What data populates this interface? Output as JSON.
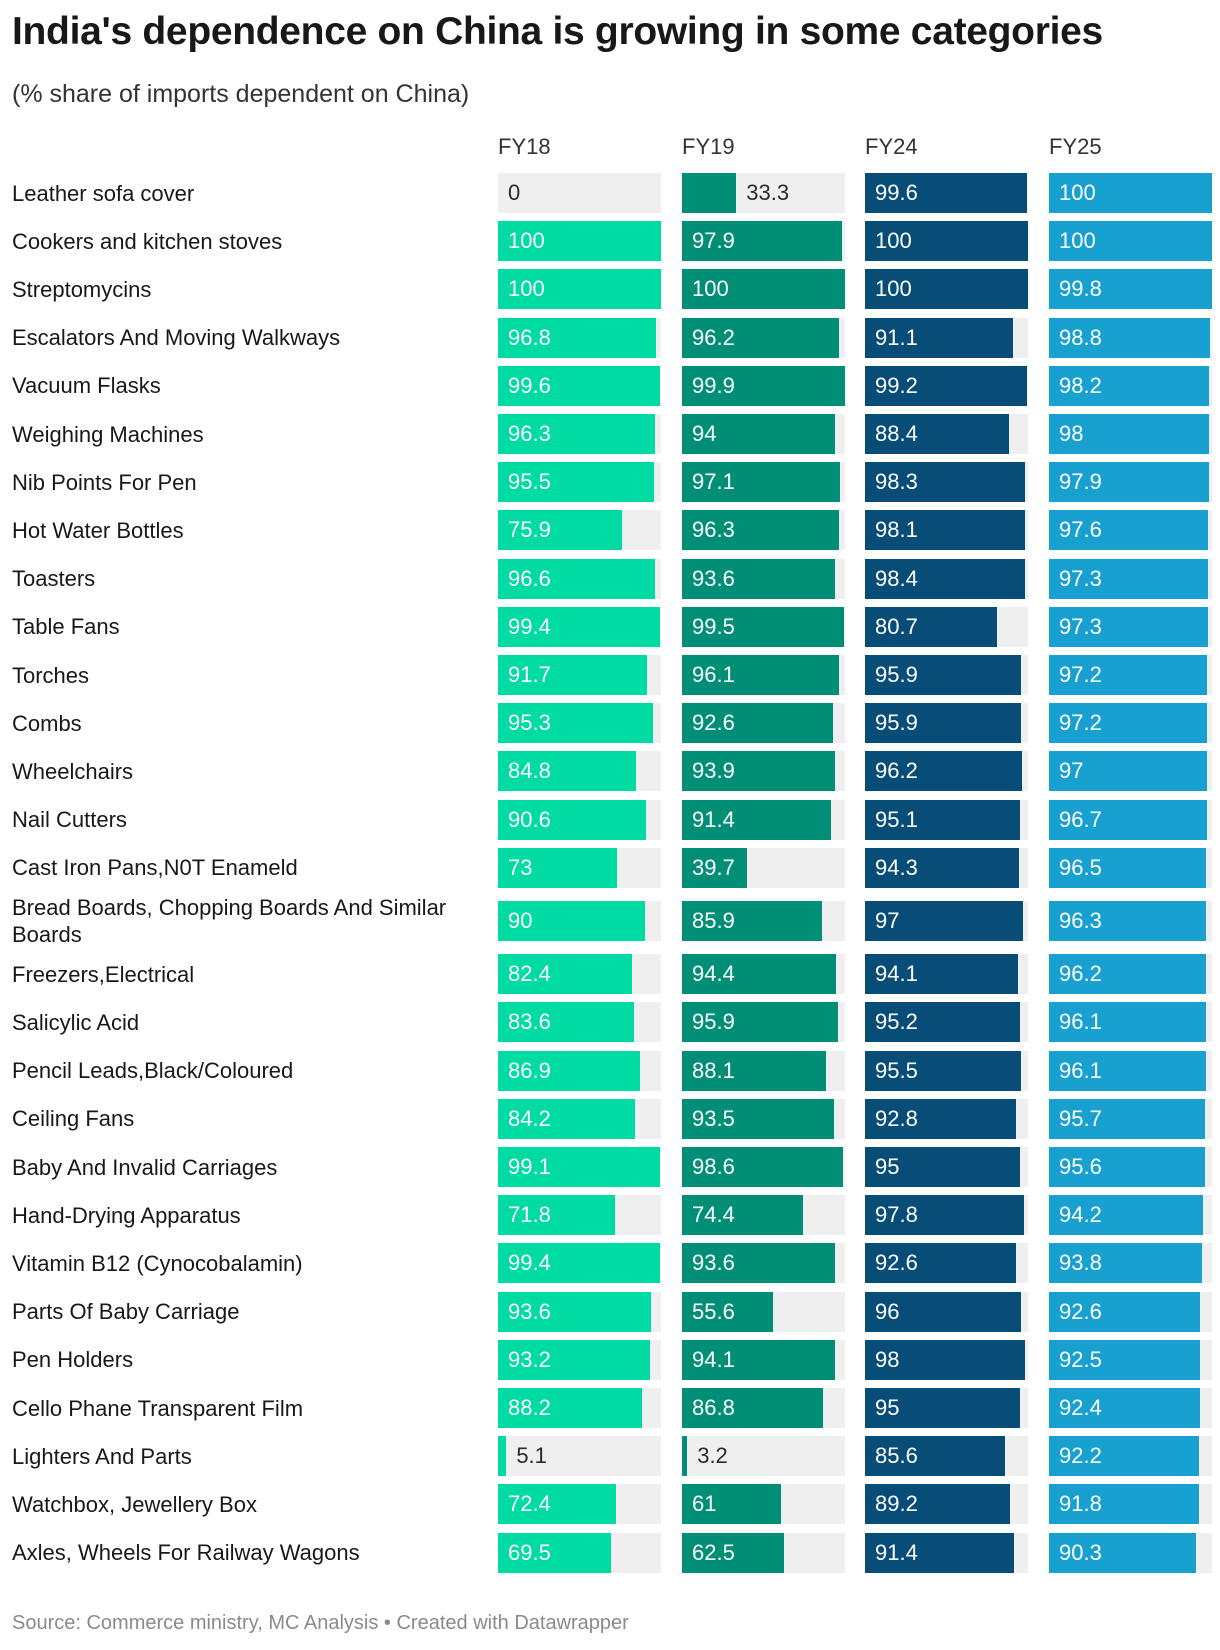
{
  "title": "India's dependence on China is growing in some categories",
  "subtitle": "(% share of imports dependent on China)",
  "footer": "Source: Commerce ministry, MC Analysis • Created with Datawrapper",
  "colors": {
    "FY18": "#00dba4",
    "FY19": "#008f76",
    "FY24": "#084c78",
    "FY25": "#18a0d0",
    "track": "#efefef",
    "light_text": "#ffffff",
    "dark_text": "#2a2a2a"
  },
  "chart_data": {
    "type": "bar",
    "orientation": "horizontal",
    "layout": "small-multiples-columns",
    "title": "India's dependence on China is growing in some categories",
    "subtitle": "(% share of imports dependent on China)",
    "xlim": [
      0,
      100
    ],
    "series_names": [
      "FY18",
      "FY19",
      "FY24",
      "FY25"
    ],
    "categories": [
      "Leather sofa cover",
      "Cookers and kitchen stoves",
      "Streptomycins",
      "Escalators And Moving Walkways",
      "Vacuum Flasks",
      "Weighing Machines",
      "Nib Points For Pen",
      "Hot Water Bottles",
      "Toasters",
      "Table Fans",
      "Torches",
      "Combs",
      "Wheelchairs",
      "Nail Cutters",
      "Cast Iron Pans,N0T Enameld",
      "Bread Boards, Chopping Boards And Similar Boards",
      "Freezers,Electrical",
      "Salicylic Acid",
      "Pencil Leads,Black/Coloured",
      "Ceiling Fans",
      "Baby And Invalid Carriages",
      "Hand-Drying Apparatus",
      "Vitamin B12 (Cynocobalamin)",
      "Parts Of Baby Carriage",
      "Pen Holders",
      "Cello Phane Transparent Film",
      "Lighters And Parts",
      "Watchbox, Jewellery Box",
      "Axles, Wheels For Railway Wagons"
    ],
    "series": [
      {
        "name": "FY18",
        "values": [
          "0",
          "100",
          "100",
          "96.8",
          "99.6",
          "96.3",
          "95.5",
          "75.9",
          "96.6",
          "99.4",
          "91.7",
          "95.3",
          "84.8",
          "90.6",
          "73",
          "90",
          "82.4",
          "83.6",
          "86.9",
          "84.2",
          "99.1",
          "71.8",
          "99.4",
          "93.6",
          "93.2",
          "88.2",
          "5.1",
          "72.4",
          "69.5"
        ]
      },
      {
        "name": "FY19",
        "values": [
          "33.3",
          "97.9",
          "100",
          "96.2",
          "99.9",
          "94",
          "97.1",
          "96.3",
          "93.6",
          "99.5",
          "96.1",
          "92.6",
          "93.9",
          "91.4",
          "39.7",
          "85.9",
          "94.4",
          "95.9",
          "88.1",
          "93.5",
          "98.6",
          "74.4",
          "93.6",
          "55.6",
          "94.1",
          "86.8",
          "3.2",
          "61",
          "62.5"
        ]
      },
      {
        "name": "FY24",
        "values": [
          "99.6",
          "100",
          "100",
          "91.1",
          "99.2",
          "88.4",
          "98.3",
          "98.1",
          "98.4",
          "80.7",
          "95.9",
          "95.9",
          "96.2",
          "95.1",
          "94.3",
          "97",
          "94.1",
          "95.2",
          "95.5",
          "92.8",
          "95",
          "97.8",
          "92.6",
          "96",
          "98",
          "95",
          "85.6",
          "89.2",
          "91.4"
        ]
      },
      {
        "name": "FY25",
        "values": [
          "100",
          "100",
          "99.8",
          "98.8",
          "98.2",
          "98",
          "97.9",
          "97.6",
          "97.3",
          "97.3",
          "97.2",
          "97.2",
          "97",
          "96.7",
          "96.5",
          "96.3",
          "96.2",
          "96.1",
          "96.1",
          "95.7",
          "95.6",
          "94.2",
          "93.8",
          "92.6",
          "92.5",
          "92.4",
          "92.2",
          "91.8",
          "90.3"
        ]
      }
    ]
  }
}
